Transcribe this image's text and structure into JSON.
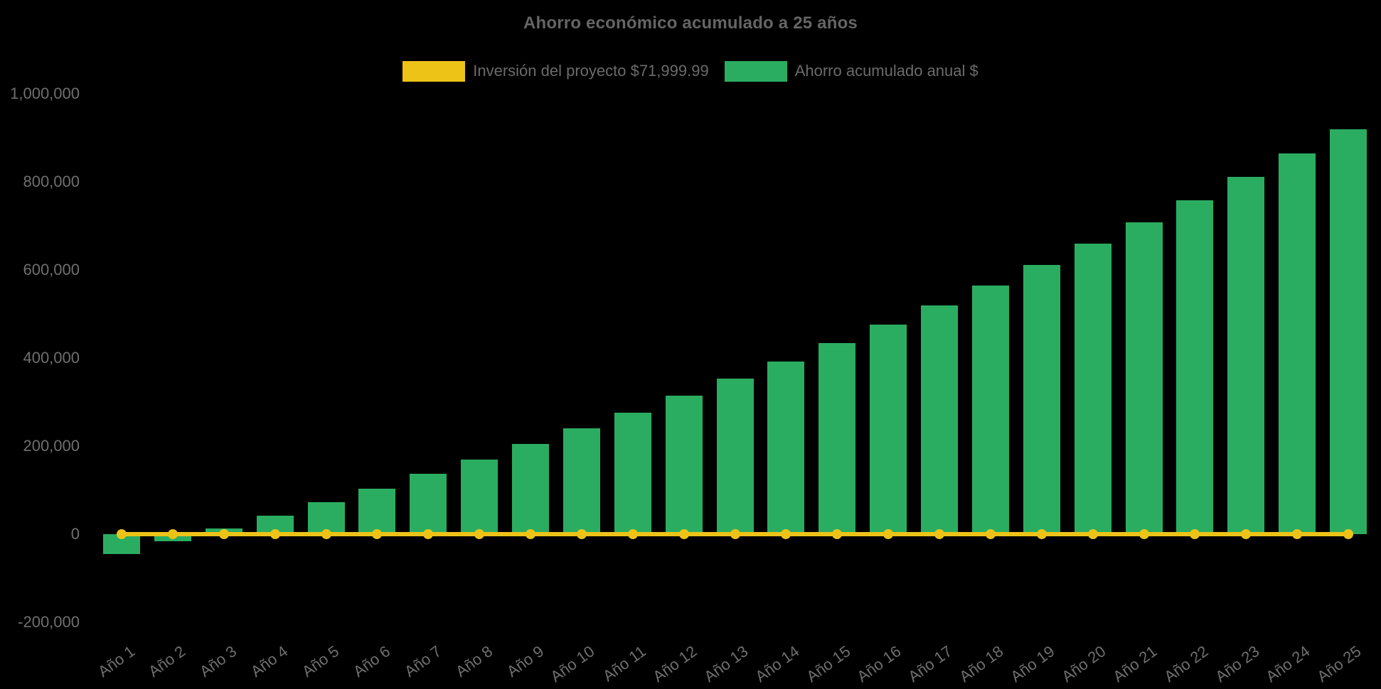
{
  "title": "Ahorro económico acumulado a 25 años",
  "background_color": "#000000",
  "text_color": "#6f6f6f",
  "title_color": "#656565",
  "chart_data": {
    "type": "bar",
    "title": "Ahorro económico acumulado a 25 años",
    "xlabel": "",
    "ylabel": "",
    "grid": false,
    "legend_position": "top",
    "background": "#000000",
    "ylim": [
      -200000,
      1000000
    ],
    "x_tick_rotation_deg": -36,
    "yticks": {
      "labels": [
        "1,000,000",
        "800,000",
        "600,000",
        "400,000",
        "200,000",
        "0",
        "-200,000"
      ],
      "values": [
        1000000,
        800000,
        600000,
        400000,
        200000,
        0,
        -200000
      ]
    },
    "categories": [
      "Año 1",
      "Año 2",
      "Año 3",
      "Año 4",
      "Año 5",
      "Año 6",
      "Año 7",
      "Año 8",
      "Año 9",
      "Año 10",
      "Año 11",
      "Año 12",
      "Año 13",
      "Año 14",
      "Año 15",
      "Año 16",
      "Año 17",
      "Año 18",
      "Año 19",
      "Año 20",
      "Año 21",
      "Año 22",
      "Año 23",
      "Año 24",
      "Año 25"
    ],
    "series": [
      {
        "name": "Inversión del proyecto $71,999.99",
        "type": "line",
        "color": "#edc318",
        "marker": "circle",
        "values": [
          0,
          0,
          0,
          0,
          0,
          0,
          0,
          0,
          0,
          0,
          0,
          0,
          0,
          0,
          0,
          0,
          0,
          0,
          0,
          0,
          0,
          0,
          0,
          0,
          0
        ]
      },
      {
        "name": "Ahorro acumulado anual $",
        "type": "bar",
        "color": "#2bad61",
        "values": [
          -44800,
          -16800,
          12100,
          41800,
          72400,
          103900,
          136400,
          169900,
          204300,
          239800,
          276400,
          314000,
          352800,
          392700,
          433900,
          476300,
          519900,
          564900,
          611200,
          658900,
          708000,
          758600,
          810700,
          864400,
          919700
        ]
      }
    ]
  }
}
